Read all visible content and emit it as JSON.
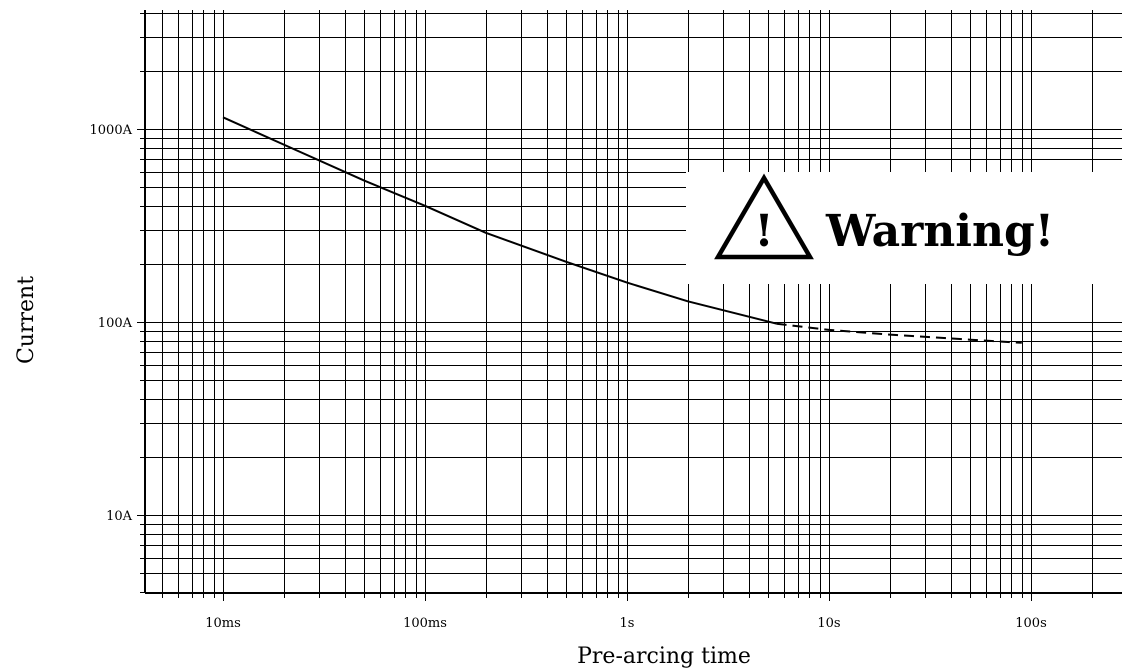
{
  "chart_data": {
    "type": "line",
    "title": "",
    "xlabel": "Pre-arcing time",
    "ylabel": "Current",
    "x_scale": "log",
    "y_scale": "log",
    "xlim": [
      "4ms",
      "250s"
    ],
    "ylim": [
      "4A",
      "4000A"
    ],
    "x_ticks": [
      "10ms",
      "100ms",
      "1s",
      "10s",
      "100s"
    ],
    "y_ticks": [
      "10A",
      "100A",
      "1000A"
    ],
    "grid": true,
    "series": [
      {
        "style": "solid",
        "x": [
          "10ms",
          "20ms",
          "50ms",
          "100ms",
          "200ms",
          "500ms",
          "1s",
          "2s",
          "5.5s"
        ],
        "y": [
          "1150A",
          "830A",
          "540A",
          "400A",
          "290A",
          "205A",
          "160A",
          "128A",
          "98A"
        ]
      },
      {
        "style": "dashed",
        "x": [
          "5.5s",
          "10s",
          "20s",
          "50s",
          "90s"
        ],
        "y": [
          "98A",
          "91A",
          "86A",
          "81A",
          "78A"
        ]
      }
    ]
  },
  "warning": {
    "label": "Warning!",
    "icon": "warning-triangle-icon",
    "glyph": "!"
  }
}
